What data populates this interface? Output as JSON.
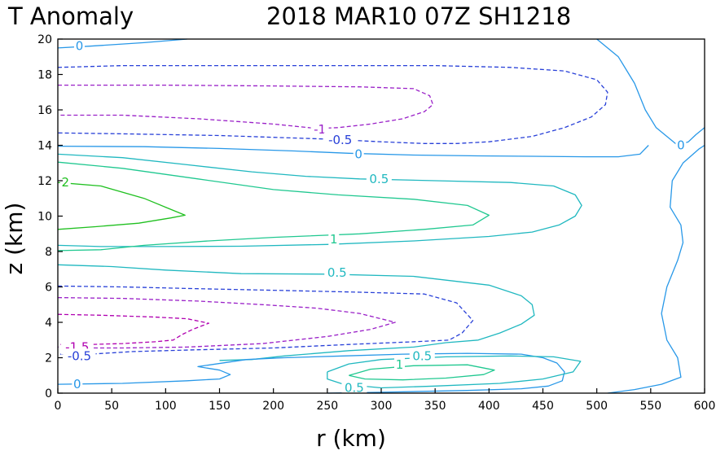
{
  "chart_data": {
    "type": "contour",
    "title_left": "T Anomaly",
    "title_right": "2018 MAR10 07Z   SH1218",
    "xlabel": "r (km)",
    "ylabel": "z (km)",
    "xlim": [
      0,
      600
    ],
    "ylim": [
      0,
      20
    ],
    "xticks": [
      "0",
      "50",
      "100",
      "150",
      "200",
      "250",
      "300",
      "350",
      "400",
      "450",
      "500",
      "550",
      "600"
    ],
    "yticks": [
      "0",
      "2",
      "4",
      "6",
      "8",
      "10",
      "12",
      "14",
      "16",
      "18",
      "20"
    ],
    "level_colors": {
      "-1.5": "#b000b0",
      "-1": "#9a20c8",
      "-0.5": "#2840d8",
      "0": "#2898e8",
      "0.5": "#20b8c0",
      "1": "#20c890",
      "2": "#20c020"
    },
    "contours": [
      {
        "level": "0",
        "dashed": false,
        "points": [
          [
            0,
            19.5
          ],
          [
            30,
            19.6
          ],
          [
            80,
            19.8
          ],
          [
            120,
            20
          ]
        ]
      },
      {
        "level": "0",
        "dashed": false,
        "points": [
          [
            500,
            20
          ],
          [
            520,
            19
          ],
          [
            535,
            17.5
          ],
          [
            545,
            16
          ],
          [
            555,
            15
          ],
          [
            565,
            14.5
          ],
          [
            575,
            14
          ],
          [
            585,
            14.2
          ],
          [
            592,
            14.6
          ],
          [
            600,
            15
          ]
        ]
      },
      {
        "level": "-0.5",
        "dashed": true,
        "points": [
          [
            0,
            18.4
          ],
          [
            60,
            18.5
          ],
          [
            150,
            18.5
          ],
          [
            250,
            18.5
          ],
          [
            350,
            18.5
          ],
          [
            420,
            18.4
          ],
          [
            470,
            18.2
          ],
          [
            500,
            17.7
          ],
          [
            510,
            17
          ],
          [
            508,
            16.3
          ],
          [
            495,
            15.6
          ],
          [
            470,
            15
          ],
          [
            440,
            14.5
          ],
          [
            400,
            14.2
          ],
          [
            370,
            14.1
          ],
          [
            340,
            14.1
          ],
          [
            300,
            14.2
          ],
          [
            250,
            14.35
          ],
          [
            150,
            14.55
          ],
          [
            60,
            14.65
          ],
          [
            0,
            14.7
          ]
        ]
      },
      {
        "level": "-1",
        "dashed": true,
        "points": [
          [
            0,
            17.4
          ],
          [
            100,
            17.4
          ],
          [
            200,
            17.35
          ],
          [
            280,
            17.3
          ],
          [
            330,
            17.2
          ],
          [
            345,
            16.8
          ],
          [
            348,
            16.3
          ],
          [
            340,
            15.9
          ],
          [
            320,
            15.5
          ],
          [
            290,
            15.2
          ],
          [
            260,
            15
          ],
          [
            240,
            14.95
          ],
          [
            200,
            15.2
          ],
          [
            130,
            15.5
          ],
          [
            60,
            15.7
          ],
          [
            0,
            15.7
          ]
        ]
      },
      {
        "level": "0",
        "dashed": false,
        "points": [
          [
            0,
            13.95
          ],
          [
            80,
            13.92
          ],
          [
            150,
            13.82
          ],
          [
            220,
            13.68
          ],
          [
            270,
            13.55
          ],
          [
            330,
            13.45
          ],
          [
            390,
            13.4
          ],
          [
            440,
            13.38
          ],
          [
            490,
            13.35
          ],
          [
            520,
            13.35
          ],
          [
            540,
            13.5
          ],
          [
            548,
            14
          ]
        ]
      },
      {
        "level": "0.5",
        "dashed": false,
        "points": [
          [
            0,
            13.5
          ],
          [
            60,
            13.3
          ],
          [
            120,
            12.9
          ],
          [
            180,
            12.5
          ],
          [
            230,
            12.25
          ],
          [
            280,
            12.1
          ],
          [
            350,
            12
          ],
          [
            420,
            11.9
          ],
          [
            460,
            11.7
          ],
          [
            480,
            11.2
          ],
          [
            486,
            10.6
          ],
          [
            480,
            10
          ],
          [
            465,
            9.5
          ],
          [
            440,
            9.1
          ],
          [
            400,
            8.85
          ],
          [
            330,
            8.6
          ],
          [
            250,
            8.4
          ],
          [
            170,
            8.3
          ],
          [
            100,
            8.28
          ],
          [
            40,
            8.28
          ],
          [
            0,
            8.35
          ]
        ]
      },
      {
        "level": "1",
        "dashed": false,
        "points": [
          [
            0,
            13.05
          ],
          [
            60,
            12.7
          ],
          [
            130,
            12.1
          ],
          [
            200,
            11.5
          ],
          [
            260,
            11.2
          ],
          [
            330,
            10.95
          ],
          [
            380,
            10.6
          ],
          [
            400,
            10.05
          ],
          [
            385,
            9.5
          ],
          [
            340,
            9.25
          ],
          [
            280,
            9.0
          ],
          [
            200,
            8.8
          ],
          [
            140,
            8.6
          ],
          [
            80,
            8.35
          ],
          [
            40,
            8.1
          ],
          [
            0,
            8.05
          ]
        ]
      },
      {
        "level": "2",
        "dashed": false,
        "points": [
          [
            0,
            11.9
          ],
          [
            40,
            11.7
          ],
          [
            80,
            11
          ],
          [
            100,
            10.5
          ],
          [
            118,
            10.05
          ],
          [
            105,
            9.9
          ],
          [
            75,
            9.6
          ],
          [
            35,
            9.4
          ],
          [
            0,
            9.25
          ]
        ]
      },
      {
        "level": "0.5",
        "dashed": false,
        "points": [
          [
            0,
            7.25
          ],
          [
            50,
            7.15
          ],
          [
            100,
            6.95
          ],
          [
            170,
            6.75
          ],
          [
            250,
            6.72
          ],
          [
            330,
            6.6
          ],
          [
            400,
            6.1
          ],
          [
            430,
            5.5
          ],
          [
            440,
            5
          ],
          [
            442,
            4.4
          ],
          [
            430,
            3.9
          ],
          [
            410,
            3.4
          ],
          [
            390,
            3.0
          ],
          [
            360,
            2.85
          ],
          [
            330,
            2.6
          ],
          [
            270,
            2.4
          ],
          [
            210,
            2.1
          ],
          [
            180,
            1.9
          ],
          [
            150,
            1.85
          ]
        ]
      },
      {
        "level": "-0.5",
        "dashed": true,
        "points": [
          [
            0,
            6.05
          ],
          [
            60,
            6.0
          ],
          [
            130,
            5.9
          ],
          [
            210,
            5.8
          ],
          [
            280,
            5.7
          ],
          [
            340,
            5.6
          ],
          [
            370,
            5.1
          ],
          [
            385,
            4.1
          ],
          [
            375,
            3.4
          ],
          [
            363,
            3.0
          ],
          [
            330,
            2.9
          ],
          [
            270,
            2.75
          ],
          [
            200,
            2.55
          ],
          [
            130,
            2.45
          ],
          [
            70,
            2.35
          ],
          [
            30,
            2.2
          ],
          [
            0,
            2.2
          ]
        ]
      },
      {
        "level": "-1",
        "dashed": true,
        "points": [
          [
            0,
            5.4
          ],
          [
            60,
            5.35
          ],
          [
            130,
            5.2
          ],
          [
            190,
            5.0
          ],
          [
            240,
            4.8
          ],
          [
            280,
            4.5
          ],
          [
            313,
            4.0
          ],
          [
            290,
            3.6
          ],
          [
            250,
            3.2
          ],
          [
            190,
            2.8
          ],
          [
            120,
            2.6
          ],
          [
            60,
            2.55
          ],
          [
            20,
            2.55
          ],
          [
            0,
            2.6
          ]
        ]
      },
      {
        "level": "-1.5",
        "dashed": true,
        "points": [
          [
            0,
            4.45
          ],
          [
            40,
            4.4
          ],
          [
            90,
            4.3
          ],
          [
            120,
            4.2
          ],
          [
            140,
            3.95
          ],
          [
            125,
            3.6
          ],
          [
            115,
            3.3
          ],
          [
            107,
            3.0
          ],
          [
            90,
            2.9
          ],
          [
            60,
            2.8
          ],
          [
            30,
            2.75
          ],
          [
            0,
            2.75
          ]
        ]
      },
      {
        "level": "0",
        "dashed": false,
        "points": [
          [
            0,
            0.5
          ],
          [
            60,
            0.55
          ],
          [
            120,
            0.7
          ],
          [
            150,
            0.8
          ],
          [
            160,
            1.05
          ],
          [
            150,
            1.3
          ],
          [
            130,
            1.5
          ],
          [
            175,
            1.9
          ],
          [
            210,
            2.0
          ],
          [
            265,
            2.1
          ],
          [
            320,
            2.2
          ],
          [
            380,
            2.25
          ],
          [
            430,
            2.2
          ],
          [
            450,
            2.0
          ],
          [
            463,
            1.7
          ],
          [
            470,
            1.2
          ],
          [
            468,
            0.7
          ],
          [
            455,
            0.4
          ],
          [
            430,
            0.25
          ],
          [
            380,
            0.15
          ],
          [
            300,
            0.05
          ],
          [
            250,
            0
          ]
        ]
      },
      {
        "level": "0.5",
        "dashed": false,
        "points": [
          [
            250,
            1.2
          ],
          [
            270,
            1.65
          ],
          [
            300,
            1.9
          ],
          [
            360,
            2.05
          ],
          [
            420,
            2.1
          ],
          [
            460,
            2.05
          ],
          [
            485,
            1.8
          ],
          [
            478,
            1.2
          ],
          [
            450,
            0.8
          ],
          [
            410,
            0.55
          ],
          [
            350,
            0.4
          ],
          [
            300,
            0.3
          ],
          [
            265,
            0.5
          ],
          [
            250,
            0.8
          ],
          [
            250,
            1.2
          ]
        ]
      },
      {
        "level": "1",
        "dashed": false,
        "points": [
          [
            270,
            1.0
          ],
          [
            290,
            1.35
          ],
          [
            330,
            1.55
          ],
          [
            380,
            1.6
          ],
          [
            405,
            1.3
          ],
          [
            395,
            1.05
          ],
          [
            360,
            0.85
          ],
          [
            320,
            0.75
          ],
          [
            285,
            0.8
          ],
          [
            270,
            1.0
          ]
        ]
      },
      {
        "level": "0",
        "dashed": false,
        "points": [
          [
            510,
            0
          ],
          [
            535,
            0.2
          ],
          [
            560,
            0.5
          ],
          [
            578,
            0.9
          ],
          [
            575,
            2
          ],
          [
            565,
            3
          ],
          [
            560,
            4.5
          ],
          [
            565,
            6
          ],
          [
            575,
            7.5
          ],
          [
            580,
            8.5
          ],
          [
            578,
            9.5
          ],
          [
            568,
            10.5
          ],
          [
            570,
            12
          ],
          [
            580,
            13
          ],
          [
            595,
            13.8
          ],
          [
            600,
            14
          ]
        ]
      }
    ],
    "labels": [
      {
        "text": "0",
        "r": 20,
        "z": 19.6,
        "level": "0"
      },
      {
        "text": "-1",
        "r": 243,
        "z": 14.9,
        "level": "-1"
      },
      {
        "text": "-0.5",
        "r": 262,
        "z": 14.3,
        "level": "-0.5"
      },
      {
        "text": "0",
        "r": 279,
        "z": 13.5,
        "level": "0"
      },
      {
        "text": "0",
        "r": 578,
        "z": 14.0,
        "level": "0"
      },
      {
        "text": "0.5",
        "r": 298,
        "z": 12.1,
        "level": "0.5"
      },
      {
        "text": "2",
        "r": 7,
        "z": 11.9,
        "level": "2"
      },
      {
        "text": "1",
        "r": 256,
        "z": 8.7,
        "level": "1"
      },
      {
        "text": "0.5",
        "r": 259,
        "z": 6.8,
        "level": "0.5"
      },
      {
        "text": "-1.5",
        "r": 18,
        "z": 2.6,
        "level": "-1.5"
      },
      {
        "text": "-0.5",
        "r": 20,
        "z": 2.1,
        "level": "-0.5"
      },
      {
        "text": "0.5",
        "r": 338,
        "z": 2.1,
        "level": "0.5"
      },
      {
        "text": "1",
        "r": 317,
        "z": 1.6,
        "level": "1"
      },
      {
        "text": "0",
        "r": 18,
        "z": 0.5,
        "level": "0"
      },
      {
        "text": "0.5",
        "r": 275,
        "z": 0.3,
        "level": "0.5"
      }
    ]
  }
}
